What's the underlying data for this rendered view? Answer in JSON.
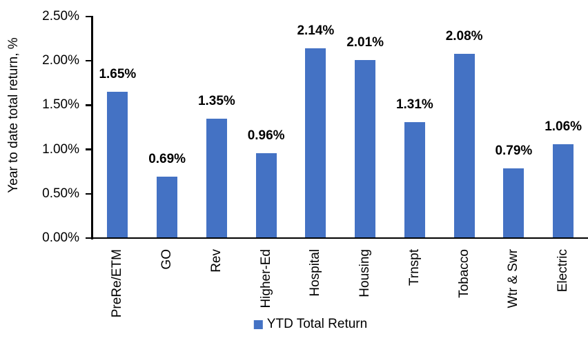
{
  "chart_data": {
    "type": "bar",
    "title": "",
    "xlabel": "",
    "ylabel": "Year to date total return, %",
    "categories": [
      "PreRe/ETM",
      "GO",
      "Rev",
      "Higher-Ed",
      "Hospital",
      "Housing",
      "Trnspt",
      "Tobacco",
      "Wtr & Swr",
      "Electric"
    ],
    "series": [
      {
        "name": "YTD Total Return",
        "values": [
          1.65,
          0.69,
          1.35,
          0.96,
          2.14,
          2.01,
          1.31,
          2.08,
          0.79,
          1.06
        ]
      }
    ],
    "value_labels": [
      "1.65%",
      "0.69%",
      "1.35%",
      "0.96%",
      "2.14%",
      "2.01%",
      "1.31%",
      "2.08%",
      "0.79%",
      "1.06%"
    ],
    "y_ticks": [
      {
        "label": "0.00%",
        "value": 0.0
      },
      {
        "label": "0.50%",
        "value": 0.5
      },
      {
        "label": "1.00%",
        "value": 1.0
      },
      {
        "label": "1.50%",
        "value": 1.5
      },
      {
        "label": "2.00%",
        "value": 2.0
      },
      {
        "label": "2.50%",
        "value": 2.5
      }
    ],
    "ylim": [
      0,
      2.5
    ],
    "grid": false,
    "legend_position": "bottom-center",
    "bar_color": "#4472C4",
    "axis_color": "#000000",
    "label_color": "#000000"
  }
}
